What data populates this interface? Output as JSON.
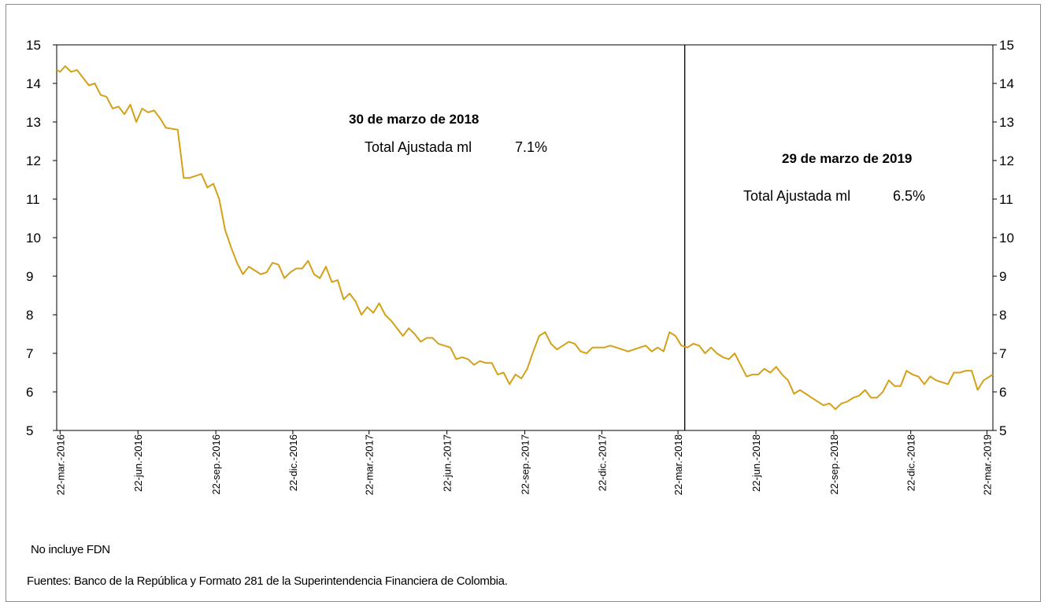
{
  "chart_data": {
    "type": "line",
    "title": "",
    "xlabel": "",
    "ylabel": "",
    "ylim": [
      5,
      15
    ],
    "yticks": [
      5,
      6,
      7,
      8,
      9,
      10,
      11,
      12,
      13,
      14,
      15
    ],
    "grid": false,
    "legend": "none",
    "x_range": [
      "2016-03-18",
      "2019-03-29"
    ],
    "x_tick_dates": [
      "2016-03-22",
      "2016-06-22",
      "2016-09-22",
      "2016-12-22",
      "2017-03-22",
      "2017-06-22",
      "2017-09-22",
      "2017-12-22",
      "2018-03-22",
      "2018-06-22",
      "2018-09-22",
      "2018-12-22",
      "2019-03-22"
    ],
    "x_tick_labels": [
      "22-mar.-2016",
      "22-jun.-2016",
      "22-sep.-2016",
      "22-dic.-2016",
      "22-mar.-2017",
      "22-jun.-2017",
      "22-sep.-2017",
      "22-dic.-2017",
      "22-mar.-2018",
      "22-jun.-2018",
      "22-sep.-2018",
      "22-dic.-2018",
      "22-mar.-2019"
    ],
    "line_color": "#d4a017",
    "series": [
      {
        "values": [
          [
            "2016-03-18",
            14.35
          ],
          [
            "2016-03-22",
            14.3
          ],
          [
            "2016-03-28",
            14.45
          ],
          [
            "2016-04-04",
            14.3
          ],
          [
            "2016-04-11",
            14.35
          ],
          [
            "2016-04-18",
            14.15
          ],
          [
            "2016-04-25",
            13.95
          ],
          [
            "2016-05-02",
            14.0
          ],
          [
            "2016-05-09",
            13.7
          ],
          [
            "2016-05-16",
            13.65
          ],
          [
            "2016-05-23",
            13.35
          ],
          [
            "2016-05-30",
            13.4
          ],
          [
            "2016-06-06",
            13.2
          ],
          [
            "2016-06-13",
            13.45
          ],
          [
            "2016-06-20",
            13.0
          ],
          [
            "2016-06-27",
            13.35
          ],
          [
            "2016-07-04",
            13.25
          ],
          [
            "2016-07-11",
            13.3
          ],
          [
            "2016-07-18",
            13.1
          ],
          [
            "2016-07-25",
            12.85
          ],
          [
            "2016-08-08",
            12.8
          ],
          [
            "2016-08-15",
            11.55
          ],
          [
            "2016-08-22",
            11.55
          ],
          [
            "2016-08-29",
            11.6
          ],
          [
            "2016-09-05",
            11.65
          ],
          [
            "2016-09-12",
            11.3
          ],
          [
            "2016-09-19",
            11.4
          ],
          [
            "2016-09-26",
            11.0
          ],
          [
            "2016-10-03",
            10.2
          ],
          [
            "2016-10-10",
            9.75
          ],
          [
            "2016-10-17",
            9.35
          ],
          [
            "2016-10-24",
            9.05
          ],
          [
            "2016-10-31",
            9.25
          ],
          [
            "2016-11-07",
            9.15
          ],
          [
            "2016-11-14",
            9.05
          ],
          [
            "2016-11-21",
            9.1
          ],
          [
            "2016-11-28",
            9.35
          ],
          [
            "2016-12-05",
            9.3
          ],
          [
            "2016-12-12",
            8.95
          ],
          [
            "2016-12-19",
            9.1
          ],
          [
            "2016-12-26",
            9.2
          ],
          [
            "2017-01-02",
            9.2
          ],
          [
            "2017-01-09",
            9.4
          ],
          [
            "2017-01-16",
            9.05
          ],
          [
            "2017-01-23",
            8.95
          ],
          [
            "2017-01-30",
            9.25
          ],
          [
            "2017-02-06",
            8.85
          ],
          [
            "2017-02-13",
            8.9
          ],
          [
            "2017-02-20",
            8.4
          ],
          [
            "2017-02-27",
            8.55
          ],
          [
            "2017-03-06",
            8.35
          ],
          [
            "2017-03-13",
            8.0
          ],
          [
            "2017-03-20",
            8.2
          ],
          [
            "2017-03-27",
            8.05
          ],
          [
            "2017-04-03",
            8.3
          ],
          [
            "2017-04-10",
            8.0
          ],
          [
            "2017-04-17",
            7.85
          ],
          [
            "2017-04-24",
            7.65
          ],
          [
            "2017-05-01",
            7.45
          ],
          [
            "2017-05-08",
            7.65
          ],
          [
            "2017-05-15",
            7.5
          ],
          [
            "2017-05-22",
            7.3
          ],
          [
            "2017-05-29",
            7.4
          ],
          [
            "2017-06-05",
            7.4
          ],
          [
            "2017-06-12",
            7.25
          ],
          [
            "2017-06-19",
            7.2
          ],
          [
            "2017-06-26",
            7.15
          ],
          [
            "2017-07-03",
            6.85
          ],
          [
            "2017-07-10",
            6.9
          ],
          [
            "2017-07-17",
            6.85
          ],
          [
            "2017-07-24",
            6.7
          ],
          [
            "2017-07-31",
            6.8
          ],
          [
            "2017-08-07",
            6.75
          ],
          [
            "2017-08-14",
            6.75
          ],
          [
            "2017-08-21",
            6.45
          ],
          [
            "2017-08-28",
            6.5
          ],
          [
            "2017-09-04",
            6.2
          ],
          [
            "2017-09-11",
            6.45
          ],
          [
            "2017-09-18",
            6.35
          ],
          [
            "2017-09-25",
            6.6
          ],
          [
            "2017-10-02",
            7.05
          ],
          [
            "2017-10-09",
            7.45
          ],
          [
            "2017-10-16",
            7.55
          ],
          [
            "2017-10-23",
            7.25
          ],
          [
            "2017-10-30",
            7.1
          ],
          [
            "2017-11-06",
            7.2
          ],
          [
            "2017-11-13",
            7.3
          ],
          [
            "2017-11-20",
            7.25
          ],
          [
            "2017-11-27",
            7.05
          ],
          [
            "2017-12-04",
            7.0
          ],
          [
            "2017-12-11",
            7.15
          ],
          [
            "2017-12-18",
            7.15
          ],
          [
            "2017-12-25",
            7.15
          ],
          [
            "2018-01-01",
            7.2
          ],
          [
            "2018-01-08",
            7.15
          ],
          [
            "2018-01-15",
            7.1
          ],
          [
            "2018-01-22",
            7.05
          ],
          [
            "2018-01-29",
            7.1
          ],
          [
            "2018-02-05",
            7.15
          ],
          [
            "2018-02-12",
            7.2
          ],
          [
            "2018-02-19",
            7.05
          ],
          [
            "2018-02-26",
            7.15
          ],
          [
            "2018-03-05",
            7.05
          ],
          [
            "2018-03-12",
            7.55
          ],
          [
            "2018-03-19",
            7.45
          ],
          [
            "2018-03-26",
            7.2
          ],
          [
            "2018-04-02",
            7.15
          ],
          [
            "2018-04-09",
            7.25
          ],
          [
            "2018-04-16",
            7.2
          ],
          [
            "2018-04-23",
            7.0
          ],
          [
            "2018-04-30",
            7.15
          ],
          [
            "2018-05-07",
            7.0
          ],
          [
            "2018-05-14",
            6.9
          ],
          [
            "2018-05-21",
            6.85
          ],
          [
            "2018-05-28",
            7.0
          ],
          [
            "2018-06-04",
            6.7
          ],
          [
            "2018-06-11",
            6.4
          ],
          [
            "2018-06-18",
            6.45
          ],
          [
            "2018-06-25",
            6.45
          ],
          [
            "2018-07-02",
            6.6
          ],
          [
            "2018-07-09",
            6.5
          ],
          [
            "2018-07-16",
            6.65
          ],
          [
            "2018-07-23",
            6.45
          ],
          [
            "2018-07-30",
            6.3
          ],
          [
            "2018-08-06",
            5.95
          ],
          [
            "2018-08-13",
            6.05
          ],
          [
            "2018-08-20",
            5.95
          ],
          [
            "2018-08-27",
            5.85
          ],
          [
            "2018-09-03",
            5.75
          ],
          [
            "2018-09-10",
            5.65
          ],
          [
            "2018-09-17",
            5.7
          ],
          [
            "2018-09-24",
            5.55
          ],
          [
            "2018-10-01",
            5.7
          ],
          [
            "2018-10-08",
            5.75
          ],
          [
            "2018-10-15",
            5.85
          ],
          [
            "2018-10-22",
            5.9
          ],
          [
            "2018-10-29",
            6.05
          ],
          [
            "2018-11-05",
            5.85
          ],
          [
            "2018-11-12",
            5.85
          ],
          [
            "2018-11-19",
            6.0
          ],
          [
            "2018-11-26",
            6.3
          ],
          [
            "2018-12-03",
            6.15
          ],
          [
            "2018-12-10",
            6.15
          ],
          [
            "2018-12-17",
            6.55
          ],
          [
            "2018-12-24",
            6.45
          ],
          [
            "2018-12-31",
            6.4
          ],
          [
            "2019-01-07",
            6.2
          ],
          [
            "2019-01-14",
            6.4
          ],
          [
            "2019-01-21",
            6.3
          ],
          [
            "2019-01-28",
            6.25
          ],
          [
            "2019-02-04",
            6.2
          ],
          [
            "2019-02-11",
            6.5
          ],
          [
            "2019-02-18",
            6.5
          ],
          [
            "2019-02-25",
            6.55
          ],
          [
            "2019-03-04",
            6.55
          ],
          [
            "2019-03-11",
            6.05
          ],
          [
            "2019-03-18",
            6.3
          ],
          [
            "2019-03-29",
            6.45
          ]
        ]
      }
    ],
    "marker_line_date": "2018-03-30",
    "annotations": [
      {
        "title": "30 de marzo de 2018",
        "label": "Total Ajustada ml",
        "value": "7.1%"
      },
      {
        "title": "29 de marzo de 2019",
        "label": "Total Ajustada ml",
        "value": "6.5%"
      }
    ]
  },
  "footnotes": {
    "note": "No incluye FDN",
    "sources": "Fuentes: Banco de la República y Formato 281 de la Superintendencia Financiera de Colombia."
  }
}
